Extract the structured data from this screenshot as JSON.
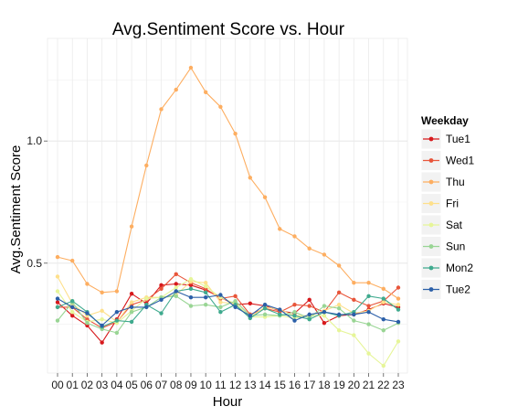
{
  "chart_data": {
    "type": "line",
    "title": "Avg.Sentiment Score vs. Hour",
    "xlabel": "Hour",
    "ylabel": "Avg.Sentiment Score",
    "categories": [
      "00",
      "01",
      "02",
      "03",
      "04",
      "05",
      "06",
      "07",
      "08",
      "09",
      "10",
      "11",
      "12",
      "13",
      "14",
      "15",
      "16",
      "17",
      "18",
      "19",
      "20",
      "21",
      "22",
      "23"
    ],
    "ylim": [
      0.05,
      1.42
    ],
    "yticks": [
      0.5,
      1.0
    ],
    "ytick_labels": [
      "0.5",
      "1.0"
    ],
    "grid": true,
    "legend_title": "Weekday",
    "legend_position": "right",
    "series": [
      {
        "name": "Tue1",
        "color": "#D7191C",
        "values": [
          0.34,
          0.285,
          0.245,
          0.175,
          0.27,
          0.375,
          0.335,
          0.41,
          0.415,
          0.41,
          0.39,
          0.36,
          0.33,
          0.335,
          0.325,
          0.305,
          0.295,
          0.35,
          0.255,
          0.285,
          0.29,
          0.31,
          0.335,
          0.32
        ]
      },
      {
        "name": "Wed1",
        "color": "#E8553A",
        "values": [
          0.32,
          0.32,
          0.27,
          0.235,
          0.26,
          0.33,
          0.35,
          0.395,
          0.455,
          0.42,
          0.395,
          0.355,
          0.365,
          0.29,
          0.315,
          0.3,
          0.33,
          0.325,
          0.3,
          0.38,
          0.35,
          0.325,
          0.345,
          0.4
        ]
      },
      {
        "name": "Thu",
        "color": "#FDAE61",
        "values": [
          0.525,
          0.51,
          0.415,
          0.38,
          0.385,
          0.65,
          0.9,
          1.13,
          1.21,
          1.3,
          1.2,
          1.14,
          1.03,
          0.85,
          0.77,
          0.64,
          0.61,
          0.56,
          0.535,
          0.49,
          0.42,
          0.42,
          0.395,
          0.355
        ]
      },
      {
        "name": "Fri",
        "color": "#FEE08B",
        "values": [
          0.445,
          0.335,
          0.285,
          0.305,
          0.26,
          0.34,
          0.36,
          0.36,
          0.37,
          0.425,
          0.42,
          0.34,
          0.335,
          0.28,
          0.32,
          0.31,
          0.285,
          0.285,
          0.305,
          0.33,
          0.295,
          0.305,
          0.34,
          0.33
        ]
      },
      {
        "name": "Sat",
        "color": "#E6F598",
        "values": [
          0.385,
          0.3,
          0.26,
          0.27,
          0.255,
          0.305,
          0.355,
          0.36,
          0.4,
          0.435,
          0.405,
          0.36,
          0.335,
          0.28,
          0.28,
          0.285,
          0.275,
          0.285,
          0.285,
          0.225,
          0.205,
          0.13,
          0.08,
          0.18
        ]
      },
      {
        "name": "Sun",
        "color": "#99D594",
        "values": [
          0.265,
          0.34,
          0.255,
          0.23,
          0.215,
          0.3,
          0.32,
          0.36,
          0.365,
          0.325,
          0.33,
          0.32,
          0.345,
          0.285,
          0.29,
          0.285,
          0.3,
          0.275,
          0.325,
          0.315,
          0.265,
          0.25,
          0.225,
          0.255
        ]
      },
      {
        "name": "Mon2",
        "color": "#3FAA8E",
        "values": [
          0.32,
          0.345,
          0.3,
          0.24,
          0.265,
          0.26,
          0.33,
          0.295,
          0.385,
          0.395,
          0.38,
          0.3,
          0.33,
          0.275,
          0.315,
          0.29,
          0.285,
          0.27,
          0.3,
          0.285,
          0.3,
          0.365,
          0.355,
          0.31
        ]
      },
      {
        "name": "Tue2",
        "color": "#2B5FA8",
        "values": [
          0.355,
          0.32,
          0.295,
          0.245,
          0.3,
          0.32,
          0.32,
          0.35,
          0.385,
          0.36,
          0.36,
          0.37,
          0.32,
          0.285,
          0.33,
          0.31,
          0.265,
          0.29,
          0.3,
          0.29,
          0.29,
          0.3,
          0.27,
          0.26
        ]
      }
    ]
  }
}
